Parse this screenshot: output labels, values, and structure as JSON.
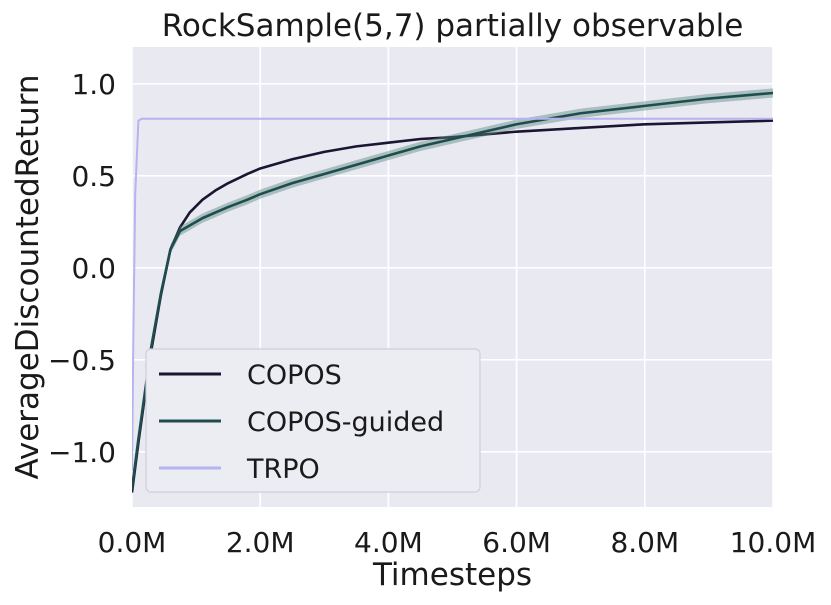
{
  "chart_data": {
    "type": "line",
    "title": "RockSample(5,7) partially observable",
    "xlabel": "Timesteps",
    "ylabel": "AverageDiscountedReturn",
    "xlim": [
      0,
      10
    ],
    "ylim": [
      -1.3,
      1.2
    ],
    "x_unit": "million timesteps",
    "xticks": [
      0,
      2,
      4,
      6,
      8,
      10
    ],
    "xtick_labels": [
      "0.0M",
      "2.0M",
      "4.0M",
      "6.0M",
      "8.0M",
      "10.0M"
    ],
    "yticks": [
      -1.0,
      -0.5,
      0.0,
      0.5,
      1.0
    ],
    "ytick_labels": [
      "−1.0",
      "−0.5",
      "0.0",
      "0.5",
      "1.0"
    ],
    "grid": true,
    "background": "#e9e9f2",
    "legend_position": "lower-left",
    "series": [
      {
        "name": "COPOS",
        "color": "#1c1532",
        "x": [
          0,
          0.1,
          0.2,
          0.3,
          0.45,
          0.6,
          0.75,
          0.9,
          1.1,
          1.3,
          1.5,
          1.8,
          2.0,
          2.5,
          3.0,
          3.5,
          4.0,
          4.5,
          5.0,
          6.0,
          7.0,
          8.0,
          9.0,
          10.0
        ],
        "y": [
          -1.22,
          -0.95,
          -0.7,
          -0.45,
          -0.15,
          0.1,
          0.22,
          0.3,
          0.37,
          0.42,
          0.46,
          0.51,
          0.54,
          0.59,
          0.63,
          0.66,
          0.68,
          0.7,
          0.71,
          0.74,
          0.76,
          0.78,
          0.79,
          0.8
        ]
      },
      {
        "name": "COPOS-guided",
        "color": "#1f4d4d",
        "band_color": "#5c8a7e",
        "x": [
          0,
          0.1,
          0.2,
          0.3,
          0.45,
          0.6,
          0.75,
          0.9,
          1.1,
          1.3,
          1.5,
          1.8,
          2.0,
          2.5,
          3.0,
          3.5,
          4.0,
          4.5,
          5.0,
          6.0,
          7.0,
          8.0,
          9.0,
          10.0
        ],
        "y": [
          -1.2,
          -0.93,
          -0.68,
          -0.43,
          -0.14,
          0.1,
          0.2,
          0.23,
          0.27,
          0.3,
          0.33,
          0.37,
          0.4,
          0.46,
          0.51,
          0.56,
          0.61,
          0.66,
          0.7,
          0.78,
          0.84,
          0.88,
          0.92,
          0.95
        ],
        "band_halfwidth": 0.025
      },
      {
        "name": "TRPO",
        "color": "#b7b3ee",
        "x": [
          0,
          0.02,
          0.05,
          0.1,
          0.15,
          0.25,
          0.5,
          1,
          2,
          4,
          6,
          8,
          10
        ],
        "y": [
          -1.1,
          -0.4,
          0.4,
          0.8,
          0.81,
          0.81,
          0.81,
          0.81,
          0.81,
          0.81,
          0.81,
          0.81,
          0.81
        ]
      }
    ]
  }
}
